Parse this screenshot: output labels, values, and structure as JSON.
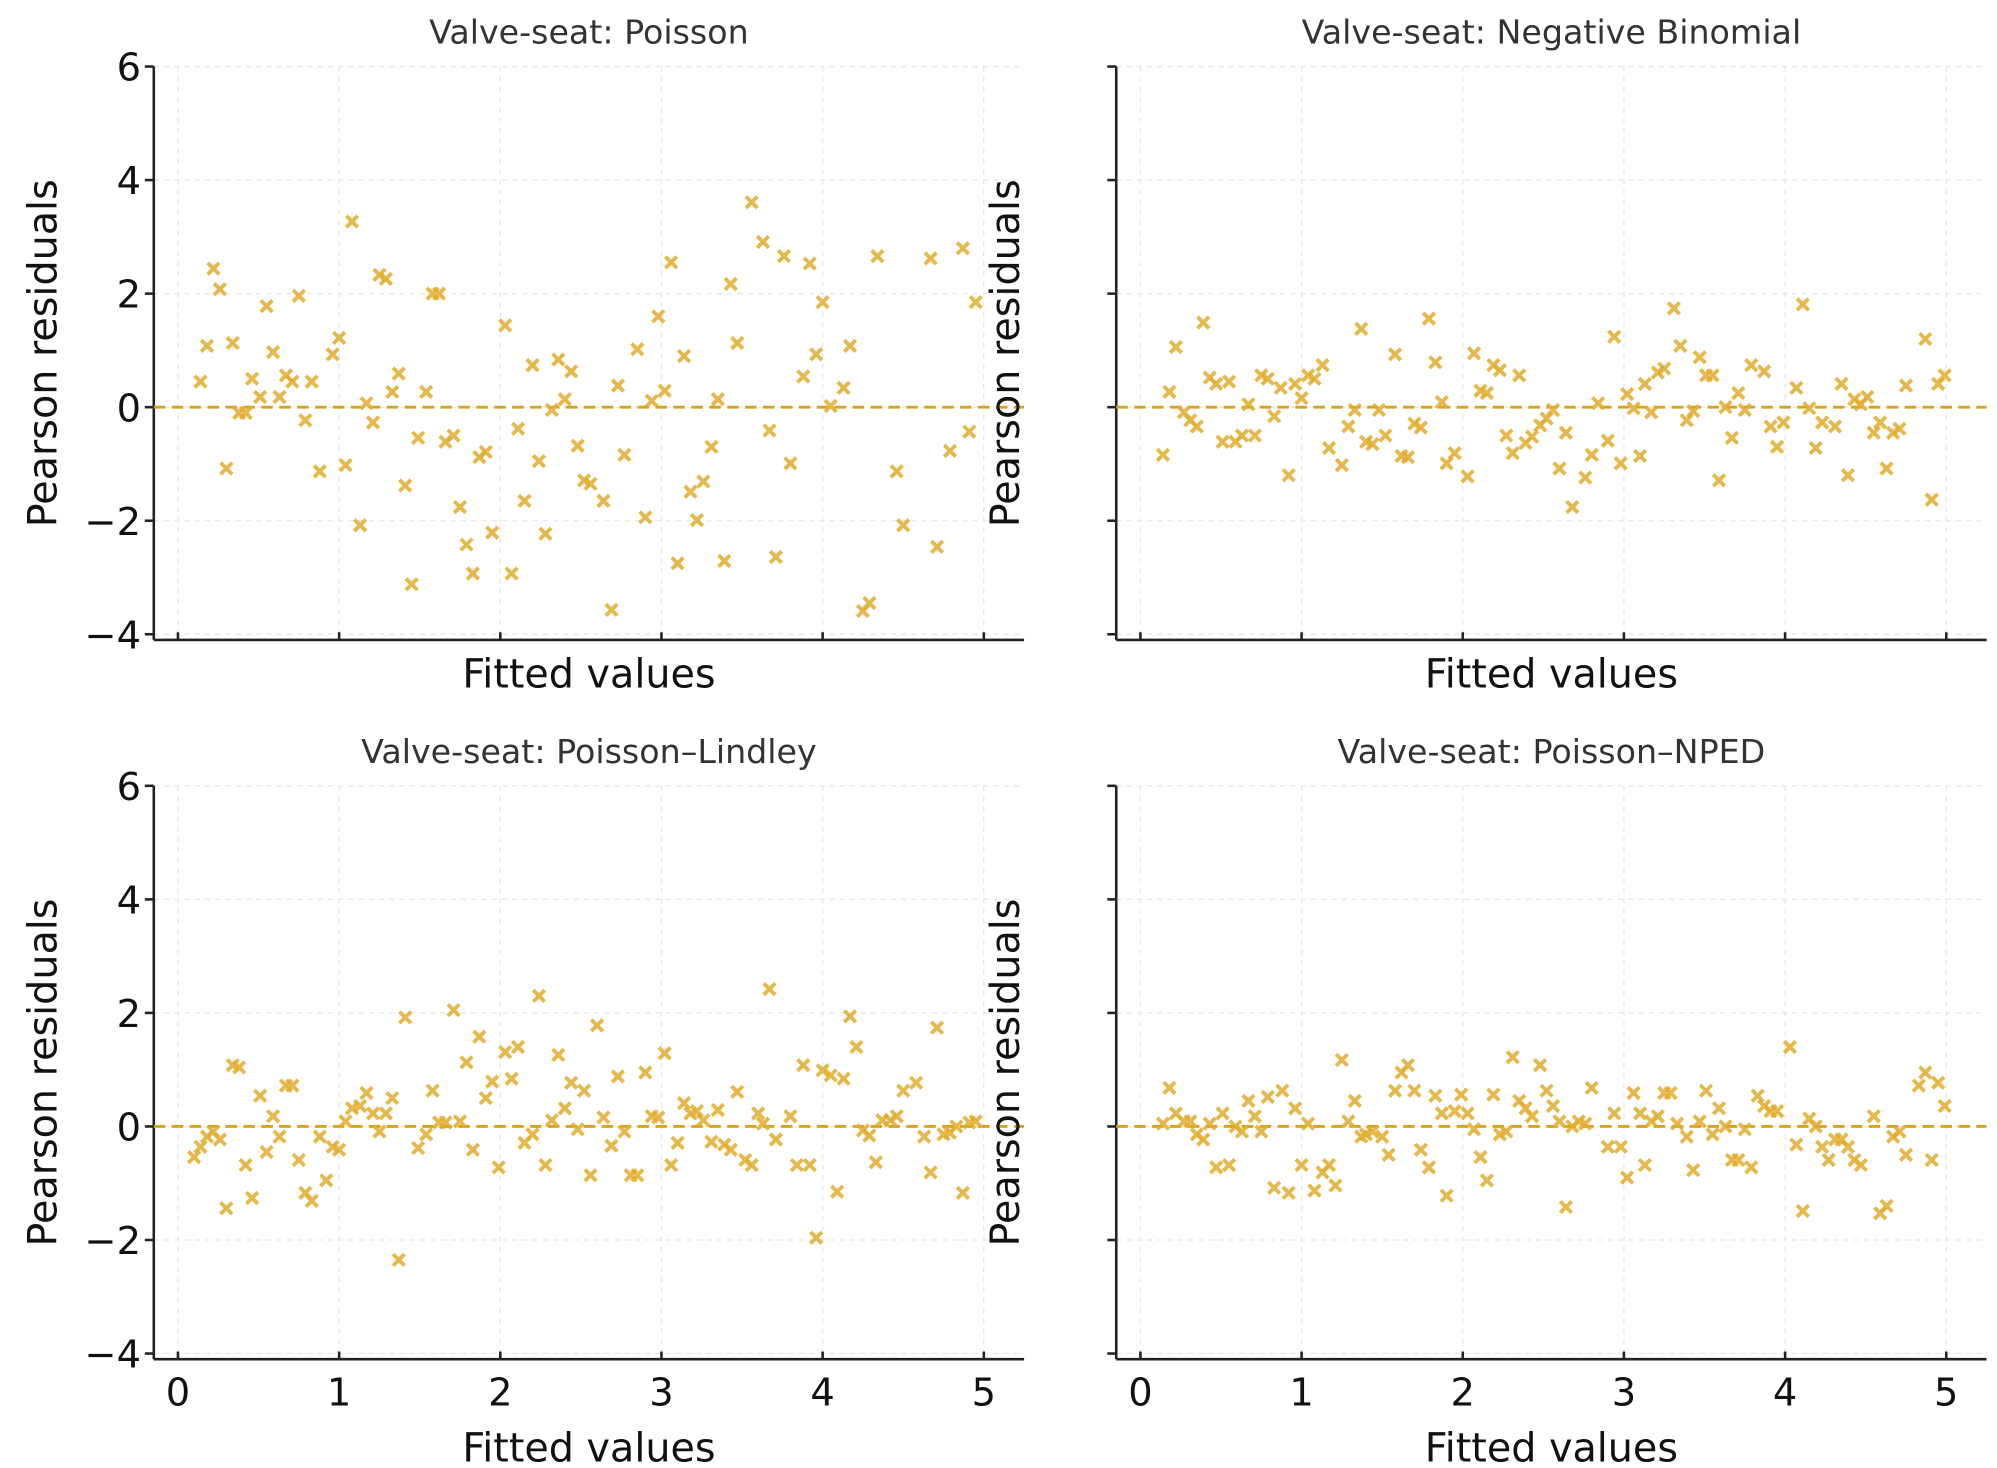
{
  "colors": {
    "marker": "#E2AC2C",
    "zero_line": "#D9A21B",
    "axis": "#222222",
    "grid": "#E6E6E6",
    "title": "#333333"
  },
  "chart_data": [
    {
      "type": "scatter",
      "title": "Valve-seat: Poisson",
      "xlabel": "Fitted values",
      "ylabel": "Pearson residuals",
      "xlim": [
        -0.15,
        5.25
      ],
      "ylim": [
        -4.1,
        6
      ],
      "xticks": [
        0,
        1,
        2,
        3,
        4,
        5
      ],
      "xtick_labels_shown": false,
      "yticks": [
        -4,
        -2,
        0,
        2,
        4,
        6
      ],
      "ytick_labels": [
        "−4",
        "−2",
        "0",
        "2",
        "4",
        "6"
      ],
      "ytick_labels_shown": true,
      "reference_line": 0,
      "grid": true,
      "marker": "x",
      "x": [
        0.14,
        0.18,
        0.22,
        0.26,
        0.3,
        0.34,
        0.38,
        0.42,
        0.46,
        0.51,
        0.55,
        0.59,
        0.63,
        0.67,
        0.71,
        0.75,
        0.79,
        0.83,
        0.88,
        0.96,
        1.0,
        1.04,
        1.08,
        1.13,
        1.17,
        1.21,
        1.25,
        1.29,
        1.33,
        1.37,
        1.41,
        1.45,
        1.49,
        1.54,
        1.58,
        1.62,
        1.66,
        1.71,
        1.75,
        1.79,
        1.83,
        1.87,
        1.91,
        1.95,
        2.03,
        2.07,
        2.11,
        2.15,
        2.2,
        2.24,
        2.28,
        2.32,
        2.36,
        2.4,
        2.44,
        2.48,
        2.52,
        2.56,
        2.64,
        2.69,
        2.73,
        2.77,
        2.85,
        2.9,
        2.94,
        2.98,
        3.02,
        3.06,
        3.1,
        3.14,
        3.18,
        3.22,
        3.26,
        3.31,
        3.35,
        3.39,
        3.43,
        3.47,
        3.56,
        3.63,
        3.67,
        3.71,
        3.76,
        3.8,
        3.88,
        3.92,
        3.96,
        4.0,
        4.05,
        4.13,
        4.17,
        4.25,
        4.29,
        4.34,
        4.46,
        4.5,
        4.67,
        4.71,
        4.79,
        4.87,
        4.91,
        4.95
      ],
      "y": [
        0.45,
        1.08,
        2.44,
        2.08,
        -1.08,
        1.13,
        -0.1,
        -0.1,
        0.5,
        0.18,
        1.78,
        0.97,
        0.18,
        0.56,
        0.45,
        1.96,
        -0.23,
        0.45,
        -1.13,
        0.93,
        1.22,
        -1.02,
        3.27,
        -2.08,
        0.07,
        -0.27,
        2.33,
        2.26,
        0.27,
        0.59,
        -1.38,
        -3.12,
        -0.54,
        0.27,
        2.0,
        2.0,
        -0.61,
        -0.5,
        -1.76,
        -2.42,
        -2.93,
        -0.88,
        -0.79,
        -2.21,
        1.44,
        -2.93,
        -0.38,
        -1.65,
        0.74,
        -0.95,
        -2.23,
        -0.05,
        0.84,
        0.14,
        0.63,
        -0.68,
        -1.29,
        -1.35,
        -1.65,
        -3.57,
        0.38,
        -0.84,
        1.02,
        -1.94,
        0.11,
        1.6,
        0.29,
        2.55,
        -2.75,
        0.9,
        -1.49,
        -1.99,
        -1.31,
        -0.7,
        0.14,
        -2.71,
        2.17,
        1.13,
        3.61,
        2.91,
        -0.41,
        -2.64,
        2.66,
        -0.99,
        0.54,
        2.53,
        0.93,
        1.85,
        0.02,
        0.34,
        1.08,
        -3.59,
        -3.45,
        2.66,
        -1.13,
        -2.08,
        2.62,
        -2.46,
        -0.77,
        2.8,
        -0.43,
        1.85
      ]
    },
    {
      "type": "scatter",
      "title": "Valve-seat: Negative Binomial",
      "xlabel": "Fitted values",
      "ylabel": "Pearson residuals",
      "xlim": [
        -0.15,
        5.25
      ],
      "ylim": [
        -4.1,
        6
      ],
      "xticks": [
        0,
        1,
        2,
        3,
        4,
        5
      ],
      "xtick_labels_shown": false,
      "yticks": [
        -4,
        -2,
        0,
        2,
        4,
        6
      ],
      "ytick_labels_shown": false,
      "reference_line": 0,
      "grid": true,
      "marker": "x",
      "x": [
        0.14,
        0.18,
        0.22,
        0.27,
        0.31,
        0.35,
        0.39,
        0.43,
        0.47,
        0.51,
        0.55,
        0.59,
        0.63,
        0.67,
        0.71,
        0.75,
        0.79,
        0.83,
        0.87,
        0.92,
        0.96,
        1.0,
        1.04,
        1.08,
        1.13,
        1.17,
        1.25,
        1.29,
        1.33,
        1.37,
        1.4,
        1.44,
        1.48,
        1.52,
        1.58,
        1.62,
        1.66,
        1.7,
        1.74,
        1.79,
        1.83,
        1.87,
        1.9,
        1.95,
        2.03,
        2.07,
        2.11,
        2.15,
        2.19,
        2.23,
        2.27,
        2.31,
        2.35,
        2.39,
        2.43,
        2.48,
        2.52,
        2.56,
        2.6,
        2.64,
        2.68,
        2.76,
        2.8,
        2.84,
        2.9,
        2.94,
        2.98,
        3.02,
        3.06,
        3.1,
        3.13,
        3.17,
        3.21,
        3.25,
        3.31,
        3.35,
        3.39,
        3.43,
        3.47,
        3.51,
        3.55,
        3.59,
        3.63,
        3.67,
        3.71,
        3.75,
        3.79,
        3.87,
        3.91,
        3.95,
        3.99,
        4.07,
        4.11,
        4.15,
        4.19,
        4.23,
        4.31,
        4.35,
        4.39,
        4.43,
        4.47,
        4.51,
        4.55,
        4.59,
        4.63,
        4.67,
        4.71,
        4.75,
        4.87,
        4.91,
        4.95,
        4.99
      ],
      "y": [
        -0.84,
        0.27,
        1.06,
        -0.09,
        -0.23,
        -0.34,
        1.49,
        0.52,
        0.41,
        -0.61,
        0.45,
        -0.61,
        -0.5,
        0.05,
        -0.5,
        0.56,
        0.5,
        -0.16,
        0.34,
        -1.2,
        0.41,
        0.16,
        0.56,
        0.5,
        0.74,
        -0.72,
        -1.02,
        -0.34,
        -0.05,
        1.38,
        -0.61,
        -0.65,
        -0.05,
        -0.5,
        0.93,
        -0.86,
        -0.88,
        -0.29,
        -0.36,
        1.56,
        0.79,
        0.09,
        -0.99,
        -0.81,
        -1.22,
        0.95,
        0.29,
        0.25,
        0.74,
        0.65,
        -0.5,
        -0.81,
        0.56,
        -0.63,
        -0.52,
        -0.32,
        -0.2,
        -0.05,
        -1.08,
        -0.45,
        -1.76,
        -1.24,
        -0.84,
        0.07,
        -0.59,
        1.24,
        -0.99,
        0.23,
        -0.02,
        -0.86,
        0.41,
        -0.09,
        0.61,
        0.68,
        1.74,
        1.08,
        -0.23,
        -0.07,
        0.88,
        0.56,
        0.56,
        -1.29,
        0,
        -0.54,
        0.25,
        -0.05,
        0.74,
        0.63,
        -0.34,
        -0.7,
        -0.27,
        0.34,
        1.81,
        -0.02,
        -0.72,
        -0.27,
        -0.34,
        0.41,
        -1.2,
        0.14,
        0.05,
        0.18,
        -0.45,
        -0.27,
        -1.08,
        -0.45,
        -0.38,
        0.38,
        1.2,
        -1.63,
        0.41,
        0.56
      ]
    },
    {
      "type": "scatter",
      "title": "Valve-seat: Poisson–Lindley",
      "xlabel": "Fitted values",
      "ylabel": "Pearson residuals",
      "xlim": [
        -0.15,
        5.25
      ],
      "ylim": [
        -4.1,
        6
      ],
      "xticks": [
        0,
        1,
        2,
        3,
        4,
        5
      ],
      "xtick_labels": [
        "0",
        "1",
        "2",
        "3",
        "4",
        "5"
      ],
      "xtick_labels_shown": true,
      "yticks": [
        -4,
        -2,
        0,
        2,
        4,
        6
      ],
      "ytick_labels": [
        "−4",
        "−2",
        "0",
        "2",
        "4",
        "6"
      ],
      "ytick_labels_shown": true,
      "reference_line": 0,
      "grid": true,
      "marker": "x",
      "x": [
        0.1,
        0.14,
        0.18,
        0.22,
        0.26,
        0.3,
        0.34,
        0.38,
        0.42,
        0.46,
        0.51,
        0.55,
        0.59,
        0.63,
        0.67,
        0.71,
        0.75,
        0.79,
        0.83,
        0.88,
        0.92,
        0.96,
        1.0,
        1.04,
        1.08,
        1.13,
        1.17,
        1.21,
        1.25,
        1.29,
        1.33,
        1.37,
        1.41,
        1.49,
        1.54,
        1.58,
        1.62,
        1.66,
        1.71,
        1.75,
        1.79,
        1.83,
        1.87,
        1.91,
        1.95,
        1.99,
        2.03,
        2.07,
        2.11,
        2.15,
        2.2,
        2.24,
        2.28,
        2.32,
        2.36,
        2.4,
        2.44,
        2.48,
        2.52,
        2.56,
        2.6,
        2.64,
        2.69,
        2.73,
        2.77,
        2.81,
        2.85,
        2.9,
        2.94,
        2.98,
        3.02,
        3.06,
        3.1,
        3.14,
        3.18,
        3.22,
        3.26,
        3.31,
        3.35,
        3.39,
        3.43,
        3.47,
        3.52,
        3.56,
        3.6,
        3.63,
        3.67,
        3.71,
        3.8,
        3.84,
        3.88,
        3.92,
        3.96,
        4.0,
        4.05,
        4.09,
        4.13,
        4.17,
        4.21,
        4.25,
        4.29,
        4.33,
        4.37,
        4.42,
        4.46,
        4.5,
        4.58,
        4.63,
        4.67,
        4.71,
        4.75,
        4.79,
        4.83,
        4.87,
        4.91,
        4.95
      ],
      "y": [
        -0.54,
        -0.36,
        -0.18,
        -0.09,
        -0.23,
        -1.44,
        1.08,
        1.04,
        -0.68,
        -1.26,
        0.54,
        -0.45,
        0.18,
        -0.18,
        0.72,
        0.72,
        -0.59,
        -1.17,
        -1.31,
        -0.18,
        -0.95,
        -0.36,
        -0.41,
        0.09,
        0.32,
        0.36,
        0.59,
        0.23,
        -0.09,
        0.23,
        0.5,
        -2.35,
        1.92,
        -0.38,
        -0.14,
        0.63,
        0.07,
        0.07,
        2.05,
        0.09,
        1.13,
        -0.41,
        1.58,
        0.5,
        0.79,
        -0.72,
        1.31,
        0.84,
        1.4,
        -0.29,
        -0.14,
        2.3,
        -0.68,
        0.11,
        1.26,
        0.32,
        0.77,
        -0.05,
        0.63,
        -0.86,
        1.78,
        0.16,
        -0.34,
        0.88,
        -0.09,
        -0.86,
        -0.86,
        0.95,
        0.18,
        0.16,
        1.29,
        -0.68,
        -0.29,
        0.41,
        0.23,
        0.27,
        0.11,
        -0.27,
        0.29,
        -0.32,
        -0.41,
        0.61,
        -0.59,
        -0.68,
        0.23,
        0.05,
        2.42,
        -0.23,
        0.18,
        -0.68,
        1.08,
        -0.68,
        -1.96,
        0.99,
        0.9,
        -1.15,
        0.84,
        1.94,
        1.4,
        -0.07,
        -0.16,
        -0.63,
        0.11,
        0.11,
        0.18,
        0.63,
        0.77,
        -0.18,
        -0.81,
        1.74,
        -0.14,
        -0.11,
        0,
        -1.17,
        0.07,
        0.09
      ]
    },
    {
      "type": "scatter",
      "title": "Valve-seat: Poisson–NPED",
      "xlabel": "Fitted values",
      "ylabel": "Pearson residuals",
      "xlim": [
        -0.15,
        5.25
      ],
      "ylim": [
        -4.1,
        6
      ],
      "xticks": [
        0,
        1,
        2,
        3,
        4,
        5
      ],
      "xtick_labels": [
        "0",
        "1",
        "2",
        "3",
        "4",
        "5"
      ],
      "xtick_labels_shown": true,
      "yticks": [
        -4,
        -2,
        0,
        2,
        4,
        6
      ],
      "ytick_labels_shown": false,
      "reference_line": 0,
      "grid": true,
      "marker": "x",
      "x": [
        0.14,
        0.18,
        0.22,
        0.27,
        0.31,
        0.35,
        0.39,
        0.43,
        0.47,
        0.51,
        0.55,
        0.59,
        0.63,
        0.67,
        0.71,
        0.75,
        0.79,
        0.83,
        0.88,
        0.92,
        0.96,
        1.0,
        1.04,
        1.08,
        1.13,
        1.17,
        1.21,
        1.25,
        1.29,
        1.33,
        1.37,
        1.4,
        1.44,
        1.5,
        1.54,
        1.58,
        1.62,
        1.66,
        1.7,
        1.74,
        1.79,
        1.83,
        1.87,
        1.9,
        1.95,
        1.99,
        2.03,
        2.07,
        2.11,
        2.15,
        2.19,
        2.23,
        2.27,
        2.31,
        2.35,
        2.39,
        2.43,
        2.48,
        2.52,
        2.56,
        2.6,
        2.64,
        2.68,
        2.72,
        2.76,
        2.8,
        2.9,
        2.94,
        2.98,
        3.02,
        3.06,
        3.1,
        3.13,
        3.17,
        3.21,
        3.25,
        3.29,
        3.33,
        3.39,
        3.43,
        3.47,
        3.51,
        3.55,
        3.59,
        3.63,
        3.67,
        3.71,
        3.75,
        3.79,
        3.83,
        3.87,
        3.91,
        3.95,
        4.03,
        4.07,
        4.11,
        4.15,
        4.19,
        4.23,
        4.27,
        4.31,
        4.35,
        4.39,
        4.43,
        4.47,
        4.55,
        4.59,
        4.63,
        4.67,
        4.71,
        4.75,
        4.83,
        4.87,
        4.91,
        4.95,
        4.99
      ],
      "y": [
        0.05,
        0.68,
        0.23,
        0.09,
        0.09,
        -0.14,
        -0.23,
        0.05,
        -0.72,
        0.23,
        -0.68,
        0,
        -0.09,
        0.45,
        0.18,
        -0.09,
        0.52,
        -1.08,
        0.63,
        -1.17,
        0.32,
        -0.68,
        0.05,
        -1.13,
        -0.81,
        -0.68,
        -1.04,
        1.17,
        0.09,
        0.45,
        -0.18,
        -0.14,
        -0.09,
        -0.18,
        -0.5,
        0.63,
        0.95,
        1.08,
        0.63,
        -0.41,
        -0.72,
        0.54,
        0.23,
        -1.22,
        0.27,
        0.56,
        0.23,
        -0.05,
        -0.54,
        -0.95,
        0.56,
        -0.14,
        -0.09,
        1.22,
        0.45,
        0.32,
        0.18,
        1.08,
        0.63,
        0.36,
        0.09,
        -1.42,
        0,
        0.09,
        0.05,
        0.68,
        -0.36,
        0.23,
        -0.36,
        -0.9,
        0.59,
        0.23,
        -0.68,
        0.09,
        0.18,
        0.59,
        0.59,
        0.05,
        -0.18,
        -0.77,
        0.09,
        0.63,
        -0.14,
        0.32,
        0,
        -0.59,
        -0.59,
        -0.05,
        -0.72,
        0.54,
        0.36,
        0.27,
        0.27,
        1.4,
        -0.32,
        -1.49,
        0.14,
        0,
        -0.36,
        -0.59,
        -0.23,
        -0.23,
        -0.36,
        -0.59,
        -0.68,
        0.18,
        -1.53,
        -1.4,
        -0.18,
        -0.09,
        -0.5,
        0.72,
        0.95,
        -0.59,
        0.77,
        0.36
      ]
    }
  ]
}
